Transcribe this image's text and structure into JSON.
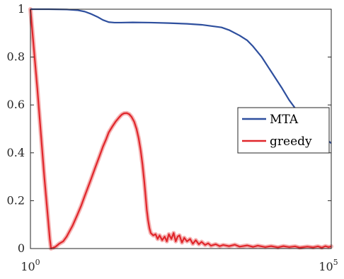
{
  "chart_data": {
    "type": "line",
    "title": "",
    "xlabel": "",
    "ylabel": "",
    "xscale": "log",
    "xlim": [
      1,
      100000
    ],
    "ylim": [
      0,
      1
    ],
    "grid": false,
    "legend_position": "right",
    "x_ticks": [
      {
        "value": 1,
        "base": "10",
        "exp": "0"
      },
      {
        "value": 100000,
        "base": "10",
        "exp": "5"
      }
    ],
    "y_ticks": [
      {
        "value": 0,
        "label": "0"
      },
      {
        "value": 0.2,
        "label": "0.2"
      },
      {
        "value": 0.4,
        "label": "0.4"
      },
      {
        "value": 0.6,
        "label": "0.6"
      },
      {
        "value": 0.8,
        "label": "0.8"
      },
      {
        "value": 1,
        "label": "1"
      }
    ],
    "series": [
      {
        "name": "MTA",
        "color": "#2e4f9e",
        "points": [
          [
            1,
            1.0
          ],
          [
            2,
            1.0
          ],
          [
            4,
            0.999
          ],
          [
            6,
            0.996
          ],
          [
            8,
            0.99
          ],
          [
            10,
            0.981
          ],
          [
            13,
            0.968
          ],
          [
            16,
            0.955
          ],
          [
            20,
            0.946
          ],
          [
            25,
            0.944
          ],
          [
            32,
            0.944
          ],
          [
            50,
            0.945
          ],
          [
            100,
            0.944
          ],
          [
            200,
            0.942
          ],
          [
            400,
            0.939
          ],
          [
            700,
            0.935
          ],
          [
            1000,
            0.93
          ],
          [
            1500,
            0.924
          ],
          [
            2000,
            0.913
          ],
          [
            3000,
            0.89
          ],
          [
            4000,
            0.87
          ],
          [
            5000,
            0.845
          ],
          [
            7000,
            0.8
          ],
          [
            10000,
            0.74
          ],
          [
            15000,
            0.672
          ],
          [
            20000,
            0.62
          ],
          [
            30000,
            0.56
          ],
          [
            50000,
            0.505
          ],
          [
            70000,
            0.47
          ],
          [
            100000,
            0.44
          ]
        ]
      },
      {
        "name": "greedy",
        "color": "#e0262b",
        "band_color": "#f2a0a0",
        "points": [
          [
            1,
            1.0
          ],
          [
            1.3,
            0.67
          ],
          [
            1.7,
            0.3
          ],
          [
            2.1,
            0.04
          ],
          [
            2.2,
            0.0
          ],
          [
            2.6,
            0.007
          ],
          [
            3.0,
            0.02
          ],
          [
            3.5,
            0.03
          ],
          [
            4,
            0.05
          ],
          [
            5,
            0.095
          ],
          [
            6,
            0.14
          ],
          [
            7,
            0.18
          ],
          [
            8,
            0.22
          ],
          [
            10,
            0.285
          ],
          [
            12,
            0.34
          ],
          [
            14,
            0.385
          ],
          [
            16,
            0.425
          ],
          [
            18,
            0.455
          ],
          [
            20,
            0.485
          ],
          [
            23,
            0.51
          ],
          [
            26,
            0.53
          ],
          [
            30,
            0.549
          ],
          [
            33,
            0.56
          ],
          [
            36,
            0.565
          ],
          [
            40,
            0.566
          ],
          [
            44,
            0.561
          ],
          [
            48,
            0.55
          ],
          [
            53,
            0.53
          ],
          [
            58,
            0.5
          ],
          [
            63,
            0.46
          ],
          [
            68,
            0.41
          ],
          [
            73,
            0.35
          ],
          [
            78,
            0.28
          ],
          [
            82,
            0.22
          ],
          [
            86,
            0.16
          ],
          [
            90,
            0.12
          ],
          [
            95,
            0.085
          ],
          [
            100,
            0.065
          ],
          [
            110,
            0.055
          ],
          [
            120,
            0.06
          ],
          [
            130,
            0.04
          ],
          [
            140,
            0.055
          ],
          [
            155,
            0.035
          ],
          [
            170,
            0.05
          ],
          [
            185,
            0.03
          ],
          [
            200,
            0.06
          ],
          [
            220,
            0.04
          ],
          [
            240,
            0.065
          ],
          [
            260,
            0.03
          ],
          [
            280,
            0.05
          ],
          [
            300,
            0.055
          ],
          [
            330,
            0.025
          ],
          [
            360,
            0.045
          ],
          [
            400,
            0.03
          ],
          [
            450,
            0.04
          ],
          [
            500,
            0.02
          ],
          [
            560,
            0.035
          ],
          [
            630,
            0.018
          ],
          [
            700,
            0.028
          ],
          [
            800,
            0.015
          ],
          [
            900,
            0.022
          ],
          [
            1000,
            0.012
          ],
          [
            1200,
            0.018
          ],
          [
            1400,
            0.01
          ],
          [
            1600,
            0.015
          ],
          [
            2000,
            0.01
          ],
          [
            2500,
            0.016
          ],
          [
            3000,
            0.008
          ],
          [
            4000,
            0.013
          ],
          [
            5000,
            0.007
          ],
          [
            6000,
            0.012
          ],
          [
            8000,
            0.006
          ],
          [
            10000,
            0.01
          ],
          [
            13000,
            0.005
          ],
          [
            16000,
            0.01
          ],
          [
            20000,
            0.006
          ],
          [
            25000,
            0.009
          ],
          [
            30000,
            0.004
          ],
          [
            40000,
            0.008
          ],
          [
            50000,
            0.005
          ],
          [
            60000,
            0.009
          ],
          [
            70000,
            0.004
          ],
          [
            80000,
            0.01
          ],
          [
            90000,
            0.006
          ],
          [
            100000,
            0.009
          ]
        ]
      }
    ]
  }
}
